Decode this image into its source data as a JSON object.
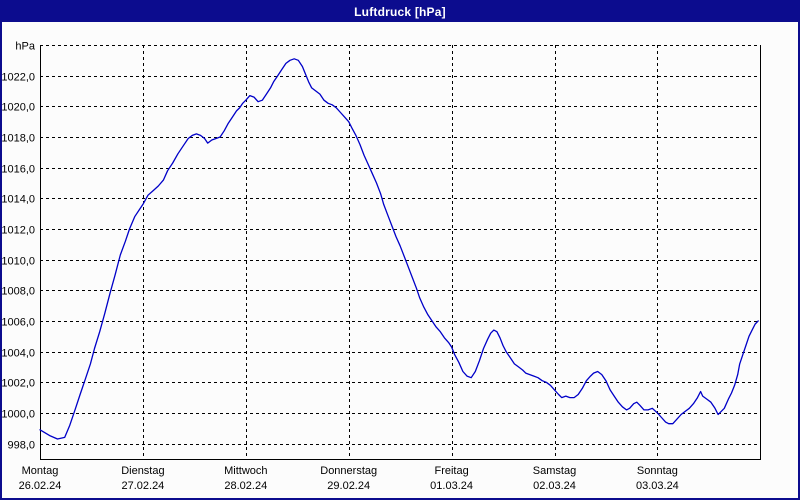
{
  "window": {
    "title": "Luftdruck [hPa]",
    "titlebar_color": "#0c0c8e",
    "border_color": "#0c0c8e",
    "background_color": "#fcfcfc"
  },
  "chart_data": {
    "type": "line",
    "title": "Luftdruck [hPa]",
    "ylabel": "hPa",
    "xlabel": "",
    "grid": "dashed",
    "legend_position": "none",
    "line_color": "#0000c8",
    "grid_color": "#000000",
    "ylim": [
      997,
      1024
    ],
    "xlim_days": [
      0,
      7
    ],
    "y_axis": {
      "unit_label": "hPa",
      "top_value": 1024,
      "px_per_hpa_note": "labeled ticks every 2 hPa, top line carries unit label",
      "ticks": [
        {
          "value": 1024,
          "label": "hPa"
        },
        {
          "value": 1022,
          "label": "1022,0"
        },
        {
          "value": 1020,
          "label": "1020,0"
        },
        {
          "value": 1018,
          "label": "1018,0"
        },
        {
          "value": 1016,
          "label": "1016,0"
        },
        {
          "value": 1014,
          "label": "1014,0"
        },
        {
          "value": 1012,
          "label": "1012,0"
        },
        {
          "value": 1010,
          "label": "1010,0"
        },
        {
          "value": 1008,
          "label": "1008,0"
        },
        {
          "value": 1006,
          "label": "1006,0"
        },
        {
          "value": 1004,
          "label": "1004,0"
        },
        {
          "value": 1002,
          "label": "1002,0"
        },
        {
          "value": 1000,
          "label": "1000,0"
        },
        {
          "value": 998,
          "label": "998,0"
        }
      ]
    },
    "x_axis": {
      "days": [
        {
          "name": "Montag",
          "date": "26.02.24"
        },
        {
          "name": "Dienstag",
          "date": "27.02.24"
        },
        {
          "name": "Mittwoch",
          "date": "28.02.24"
        },
        {
          "name": "Donnerstag",
          "date": "29.02.24"
        },
        {
          "name": "Freitag",
          "date": "01.03.24"
        },
        {
          "name": "Samstag",
          "date": "02.03.24"
        },
        {
          "name": "Sonntag",
          "date": "03.03.24"
        }
      ]
    },
    "series": [
      {
        "name": "Luftdruck",
        "unit": "hPa",
        "points_format": "[days_since_26.02.24_00:00, hPa]",
        "points": [
          [
            0.0,
            998.9
          ],
          [
            0.1,
            998.5
          ],
          [
            0.17,
            998.3
          ],
          [
            0.24,
            998.4
          ],
          [
            0.29,
            999.2
          ],
          [
            0.34,
            1000.2
          ],
          [
            0.39,
            1001.2
          ],
          [
            0.44,
            1002.2
          ],
          [
            0.49,
            1003.2
          ],
          [
            0.53,
            1004.2
          ],
          [
            0.58,
            1005.3
          ],
          [
            0.63,
            1006.5
          ],
          [
            0.68,
            1007.8
          ],
          [
            0.73,
            1009.0
          ],
          [
            0.78,
            1010.3
          ],
          [
            0.83,
            1011.2
          ],
          [
            0.87,
            1012.0
          ],
          [
            0.92,
            1012.8
          ],
          [
            0.97,
            1013.3
          ],
          [
            1.0,
            1013.6
          ],
          [
            1.05,
            1014.2
          ],
          [
            1.1,
            1014.5
          ],
          [
            1.15,
            1014.8
          ],
          [
            1.2,
            1015.2
          ],
          [
            1.24,
            1015.8
          ],
          [
            1.29,
            1016.3
          ],
          [
            1.34,
            1016.9
          ],
          [
            1.39,
            1017.4
          ],
          [
            1.44,
            1017.9
          ],
          [
            1.48,
            1018.1
          ],
          [
            1.52,
            1018.2
          ],
          [
            1.56,
            1018.1
          ],
          [
            1.6,
            1017.9
          ],
          [
            1.63,
            1017.6
          ],
          [
            1.67,
            1017.8
          ],
          [
            1.71,
            1017.9
          ],
          [
            1.75,
            1018.0
          ],
          [
            1.79,
            1018.4
          ],
          [
            1.83,
            1018.9
          ],
          [
            1.87,
            1019.3
          ],
          [
            1.91,
            1019.7
          ],
          [
            1.94,
            1019.9
          ],
          [
            1.97,
            1020.2
          ],
          [
            2.0,
            1020.4
          ],
          [
            2.04,
            1020.7
          ],
          [
            2.08,
            1020.6
          ],
          [
            2.12,
            1020.3
          ],
          [
            2.16,
            1020.4
          ],
          [
            2.2,
            1020.8
          ],
          [
            2.24,
            1021.2
          ],
          [
            2.27,
            1021.6
          ],
          [
            2.31,
            1022.0
          ],
          [
            2.35,
            1022.4
          ],
          [
            2.39,
            1022.8
          ],
          [
            2.43,
            1023.0
          ],
          [
            2.47,
            1023.1
          ],
          [
            2.51,
            1023.0
          ],
          [
            2.55,
            1022.6
          ],
          [
            2.58,
            1022.1
          ],
          [
            2.61,
            1021.6
          ],
          [
            2.64,
            1021.2
          ],
          [
            2.68,
            1021.0
          ],
          [
            2.72,
            1020.8
          ],
          [
            2.76,
            1020.4
          ],
          [
            2.8,
            1020.2
          ],
          [
            2.84,
            1020.1
          ],
          [
            2.88,
            1019.9
          ],
          [
            2.92,
            1019.6
          ],
          [
            2.96,
            1019.3
          ],
          [
            3.0,
            1019.0
          ],
          [
            3.03,
            1018.6
          ],
          [
            3.07,
            1018.1
          ],
          [
            3.11,
            1017.5
          ],
          [
            3.15,
            1016.8
          ],
          [
            3.19,
            1016.2
          ],
          [
            3.23,
            1015.6
          ],
          [
            3.27,
            1015.0
          ],
          [
            3.31,
            1014.3
          ],
          [
            3.34,
            1013.6
          ],
          [
            3.38,
            1012.9
          ],
          [
            3.42,
            1012.2
          ],
          [
            3.46,
            1011.5
          ],
          [
            3.5,
            1010.9
          ],
          [
            3.54,
            1010.2
          ],
          [
            3.58,
            1009.5
          ],
          [
            3.62,
            1008.8
          ],
          [
            3.66,
            1008.1
          ],
          [
            3.69,
            1007.5
          ],
          [
            3.73,
            1006.9
          ],
          [
            3.77,
            1006.4
          ],
          [
            3.81,
            1006.0
          ],
          [
            3.85,
            1005.6
          ],
          [
            3.89,
            1005.3
          ],
          [
            3.93,
            1004.9
          ],
          [
            3.97,
            1004.6
          ],
          [
            4.0,
            1004.3
          ],
          [
            4.03,
            1003.8
          ],
          [
            4.07,
            1003.3
          ],
          [
            4.11,
            1002.7
          ],
          [
            4.15,
            1002.4
          ],
          [
            4.19,
            1002.3
          ],
          [
            4.23,
            1002.7
          ],
          [
            4.27,
            1003.4
          ],
          [
            4.31,
            1004.2
          ],
          [
            4.35,
            1004.8
          ],
          [
            4.38,
            1005.2
          ],
          [
            4.41,
            1005.4
          ],
          [
            4.44,
            1005.3
          ],
          [
            4.47,
            1004.9
          ],
          [
            4.5,
            1004.4
          ],
          [
            4.53,
            1004.0
          ],
          [
            4.57,
            1003.6
          ],
          [
            4.61,
            1003.2
          ],
          [
            4.65,
            1003.0
          ],
          [
            4.69,
            1002.8
          ],
          [
            4.72,
            1002.6
          ],
          [
            4.76,
            1002.5
          ],
          [
            4.8,
            1002.4
          ],
          [
            4.84,
            1002.3
          ],
          [
            4.88,
            1002.1
          ],
          [
            4.92,
            1002.0
          ],
          [
            4.96,
            1001.8
          ],
          [
            5.0,
            1001.5
          ],
          [
            5.04,
            1001.2
          ],
          [
            5.07,
            1001.0
          ],
          [
            5.11,
            1001.1
          ],
          [
            5.15,
            1001.0
          ],
          [
            5.19,
            1001.0
          ],
          [
            5.23,
            1001.2
          ],
          [
            5.27,
            1001.6
          ],
          [
            5.31,
            1002.1
          ],
          [
            5.35,
            1002.4
          ],
          [
            5.38,
            1002.6
          ],
          [
            5.42,
            1002.7
          ],
          [
            5.46,
            1002.5
          ],
          [
            5.5,
            1002.1
          ],
          [
            5.54,
            1001.5
          ],
          [
            5.58,
            1001.1
          ],
          [
            5.62,
            1000.7
          ],
          [
            5.66,
            1000.4
          ],
          [
            5.7,
            1000.2
          ],
          [
            5.73,
            1000.3
          ],
          [
            5.77,
            1000.6
          ],
          [
            5.8,
            1000.7
          ],
          [
            5.83,
            1000.5
          ],
          [
            5.87,
            1000.2
          ],
          [
            5.91,
            1000.2
          ],
          [
            5.95,
            1000.3
          ],
          [
            6.0,
            1000.0
          ],
          [
            6.04,
            999.7
          ],
          [
            6.08,
            999.4
          ],
          [
            6.11,
            999.3
          ],
          [
            6.15,
            999.3
          ],
          [
            6.19,
            999.6
          ],
          [
            6.23,
            999.9
          ],
          [
            6.27,
            1000.1
          ],
          [
            6.31,
            1000.3
          ],
          [
            6.35,
            1000.6
          ],
          [
            6.39,
            1001.0
          ],
          [
            6.42,
            1001.4
          ],
          [
            6.44,
            1001.1
          ],
          [
            6.48,
            1000.9
          ],
          [
            6.52,
            1000.7
          ],
          [
            6.56,
            1000.3
          ],
          [
            6.59,
            999.9
          ],
          [
            6.62,
            1000.1
          ],
          [
            6.65,
            1000.3
          ],
          [
            6.69,
            1000.9
          ],
          [
            6.72,
            1001.3
          ],
          [
            6.75,
            1001.8
          ],
          [
            6.78,
            1002.5
          ],
          [
            6.8,
            1003.2
          ],
          [
            6.83,
            1003.8
          ],
          [
            6.86,
            1004.4
          ],
          [
            6.89,
            1005.0
          ],
          [
            6.92,
            1005.4
          ],
          [
            6.95,
            1005.8
          ],
          [
            6.98,
            1006.0
          ]
        ]
      }
    ]
  }
}
